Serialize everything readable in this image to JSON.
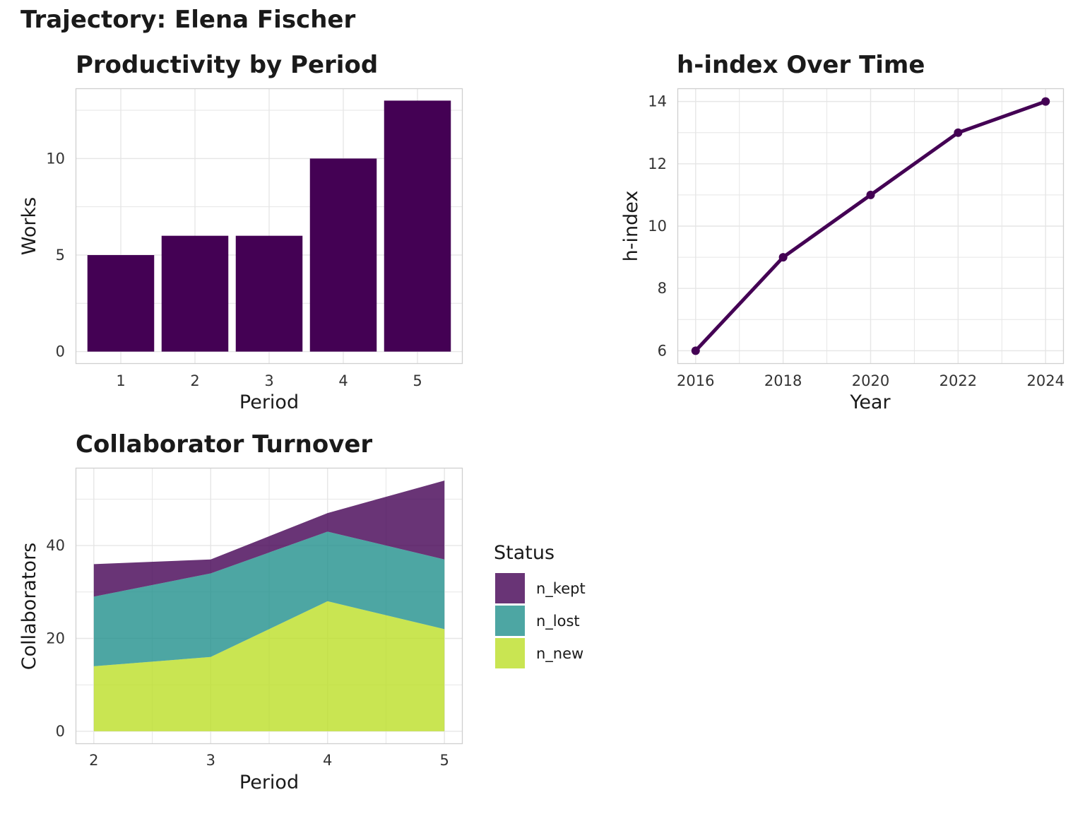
{
  "page_title": "Trajectory: Elena Fischer",
  "colors": {
    "purple": "#440154",
    "kept": "#440154",
    "lost": "#21908C",
    "new": "#BBDF27"
  },
  "chart_data": [
    {
      "type": "bar",
      "title": "Productivity by Period",
      "xlabel": "Period",
      "ylabel": "Works",
      "categories": [
        "1",
        "2",
        "3",
        "4",
        "5"
      ],
      "values": [
        5,
        6,
        6,
        10,
        13
      ],
      "yticks": [
        0,
        5,
        10
      ],
      "ylim": [
        -0.6,
        13.6
      ],
      "grid": true
    },
    {
      "type": "line",
      "title": "h-index Over Time",
      "xlabel": "Year",
      "ylabel": "h-index",
      "x": [
        2016,
        2018,
        2020,
        2022,
        2024
      ],
      "y": [
        6,
        9,
        11,
        13,
        14
      ],
      "xticks": [
        "2016",
        "2018",
        "2020",
        "2022",
        "2024"
      ],
      "yticks": [
        6,
        8,
        10,
        12,
        14
      ],
      "xlim": [
        2015.6,
        2024.4
      ],
      "ylim": [
        5.6,
        14.4
      ],
      "grid": true
    },
    {
      "type": "area",
      "title": "Collaborator Turnover",
      "xlabel": "Period",
      "ylabel": "Collaborators",
      "x": [
        2,
        3,
        4,
        5
      ],
      "xticks": [
        "2",
        "3",
        "4",
        "5"
      ],
      "yticks": [
        0,
        20,
        40
      ],
      "xlim": [
        1.85,
        5.15
      ],
      "ylim": [
        -2.6,
        56.6
      ],
      "stacked": true,
      "legend_title": "Status",
      "legend_position": "right",
      "series": [
        {
          "name": "n_kept",
          "values": [
            7,
            3,
            4,
            17
          ],
          "color": "#440154"
        },
        {
          "name": "n_lost",
          "values": [
            15,
            18,
            15,
            15
          ],
          "color": "#21908C"
        },
        {
          "name": "n_new",
          "values": [
            14,
            16,
            28,
            22
          ],
          "color": "#BBDF27"
        }
      ],
      "grid": true
    }
  ]
}
